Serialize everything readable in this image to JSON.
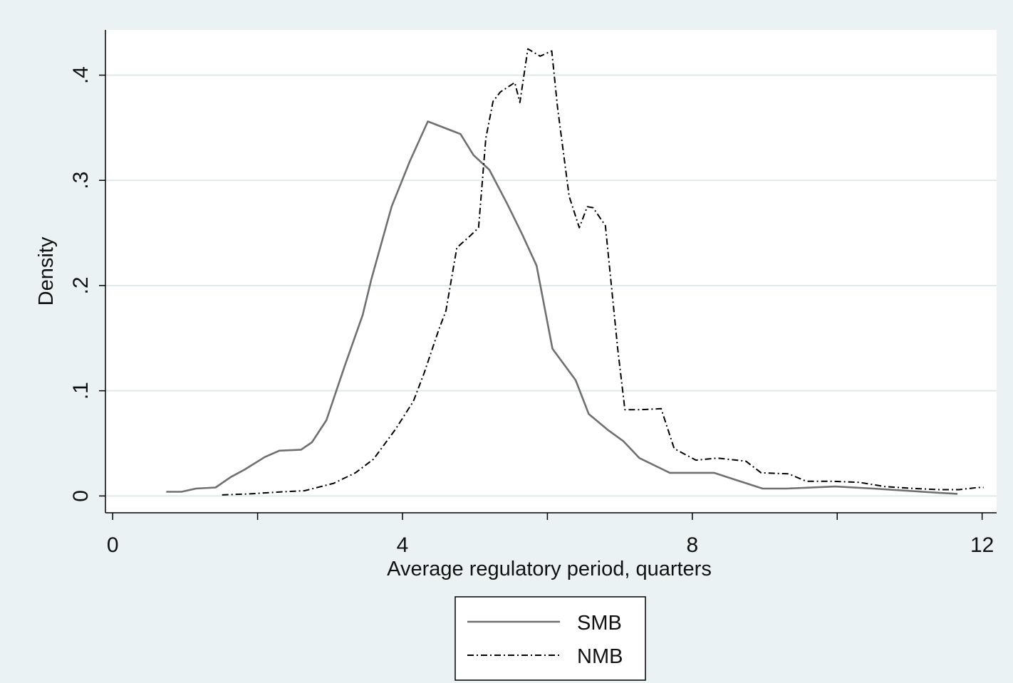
{
  "chart_data": {
    "type": "line",
    "title": "",
    "xlabel": "Average regulatory period, quarters",
    "ylabel": "Density",
    "xlim": [
      -0.1,
      12.2
    ],
    "ylim": [
      -0.016,
      0.443
    ],
    "xticks": [
      0,
      2,
      4,
      6,
      8,
      10,
      12
    ],
    "xtick_labels": [
      "0",
      "",
      "4",
      "",
      "8",
      "",
      "12"
    ],
    "yticks": [
      0,
      0.1,
      0.2,
      0.3,
      0.4
    ],
    "ytick_labels": [
      "0",
      ".1",
      ".2",
      ".3",
      ".4"
    ],
    "grid": "horizontal",
    "legend_position": "bottom",
    "colors": {
      "background": "#eaf2f3",
      "plot_area": "#ffffff",
      "grid": "#dde9ea",
      "SMB": "#707070",
      "NMB": "#000000"
    },
    "series": [
      {
        "name": "SMB",
        "style": "solid",
        "x": [
          0.74,
          0.95,
          1.15,
          1.42,
          1.63,
          1.82,
          2.1,
          2.3,
          2.6,
          2.75,
          2.95,
          3.2,
          3.45,
          3.57,
          3.85,
          4.1,
          4.35,
          4.8,
          4.98,
          5.2,
          5.45,
          5.65,
          5.85,
          6.07,
          6.39,
          6.57,
          6.83,
          7.05,
          7.27,
          7.54,
          7.69,
          8.3,
          8.97,
          9.3,
          9.97,
          10.5,
          11.4,
          11.66
        ],
        "y": [
          0.004,
          0.004,
          0.007,
          0.008,
          0.018,
          0.025,
          0.037,
          0.043,
          0.044,
          0.051,
          0.072,
          0.123,
          0.172,
          0.206,
          0.275,
          0.318,
          0.356,
          0.344,
          0.324,
          0.31,
          0.277,
          0.249,
          0.219,
          0.14,
          0.11,
          0.078,
          0.063,
          0.052,
          0.036,
          0.027,
          0.022,
          0.022,
          0.007,
          0.007,
          0.009,
          0.007,
          0.003,
          0.002
        ]
      },
      {
        "name": "NMB",
        "style": "dash-dot",
        "x": [
          1.51,
          1.9,
          2.35,
          2.65,
          3.05,
          3.35,
          3.6,
          3.9,
          4.15,
          4.3,
          4.5,
          4.6,
          4.75,
          4.93,
          5.05,
          5.15,
          5.25,
          5.35,
          5.55,
          5.62,
          5.73,
          5.9,
          6.06,
          6.14,
          6.3,
          6.44,
          6.55,
          6.63,
          6.8,
          6.97,
          7.07,
          7.3,
          7.57,
          7.75,
          8.05,
          8.35,
          8.74,
          8.95,
          9.33,
          9.57,
          9.91,
          10.3,
          10.65,
          11.08,
          11.41,
          11.68,
          11.94,
          12.02
        ],
        "y": [
          0.001,
          0.002,
          0.004,
          0.005,
          0.012,
          0.022,
          0.035,
          0.063,
          0.09,
          0.117,
          0.158,
          0.176,
          0.236,
          0.247,
          0.255,
          0.34,
          0.375,
          0.384,
          0.393,
          0.374,
          0.425,
          0.418,
          0.423,
          0.369,
          0.285,
          0.255,
          0.275,
          0.274,
          0.257,
          0.14,
          0.082,
          0.082,
          0.083,
          0.045,
          0.034,
          0.036,
          0.033,
          0.022,
          0.021,
          0.014,
          0.014,
          0.013,
          0.009,
          0.007,
          0.006,
          0.006,
          0.008,
          0.008
        ]
      }
    ]
  }
}
